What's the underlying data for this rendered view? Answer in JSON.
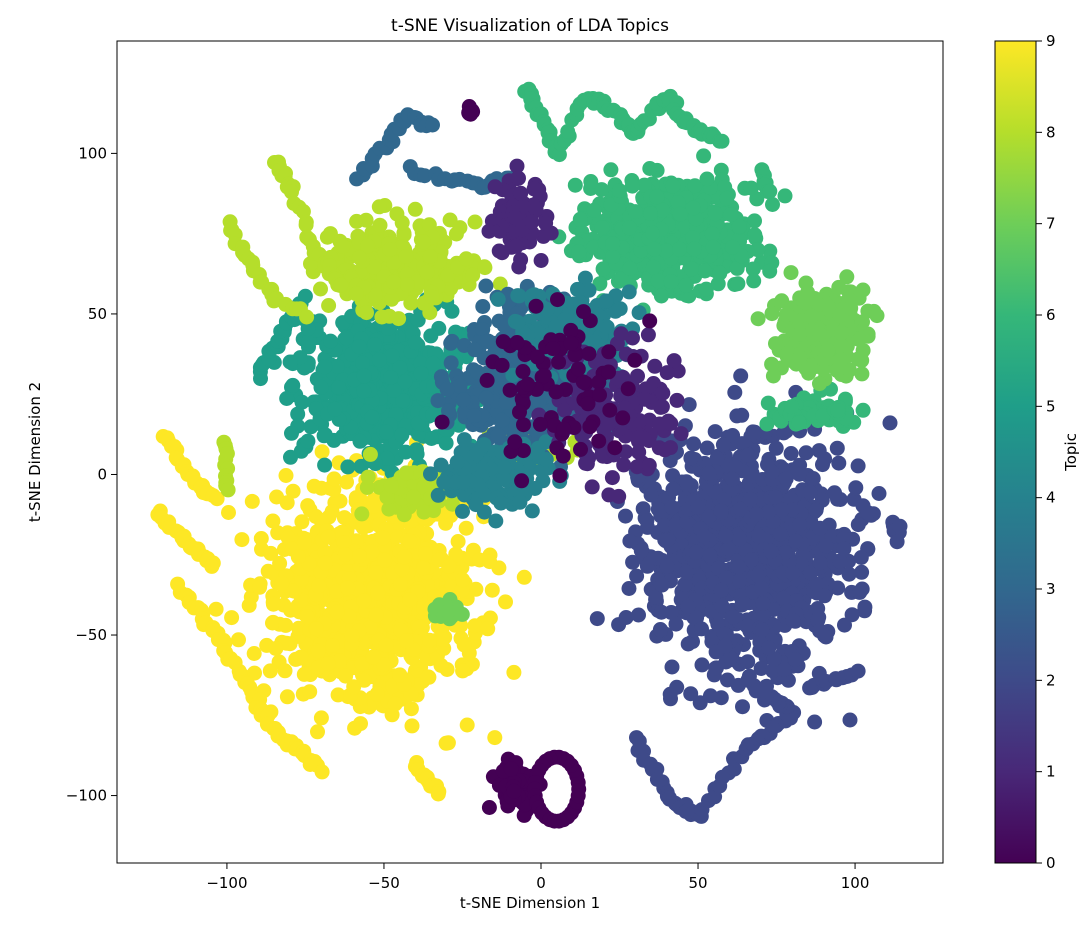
{
  "chart_data": {
    "type": "scatter",
    "title": "t-SNE Visualization of LDA Topics",
    "xlabel": "t-SNE Dimension 1",
    "ylabel": "t-SNE Dimension 2",
    "xlim": [
      -135,
      128
    ],
    "ylim": [
      -121,
      135
    ],
    "xticks": [
      -100,
      -50,
      0,
      50,
      100
    ],
    "yticks": [
      -100,
      -50,
      0,
      50,
      100
    ],
    "grid": false,
    "colormap": "viridis",
    "colorbar": {
      "label": "Topic",
      "range": [
        0,
        9
      ],
      "ticks": [
        0,
        1,
        2,
        3,
        4,
        5,
        6,
        7,
        8,
        9
      ]
    },
    "clusters": [
      {
        "topic": 9,
        "shape": "blob",
        "center": [
          -55,
          -38
        ],
        "spread": [
          30,
          30
        ],
        "count": 900
      },
      {
        "topic": 9,
        "shape": "arc",
        "points": [
          [
            -115,
            -35
          ],
          [
            -100,
            -55
          ],
          [
            -85,
            -80
          ],
          [
            -70,
            -92
          ]
        ],
        "count": 60
      },
      {
        "topic": 9,
        "shape": "arc",
        "points": [
          [
            -122,
            -12
          ],
          [
            -112,
            -22
          ],
          [
            -104,
            -28
          ]
        ],
        "count": 25
      },
      {
        "topic": 9,
        "shape": "arc",
        "points": [
          [
            -120,
            12
          ],
          [
            -112,
            0
          ],
          [
            -104,
            -8
          ]
        ],
        "count": 25
      },
      {
        "topic": 9,
        "shape": "arc",
        "points": [
          [
            -40,
            -90
          ],
          [
            -32,
            -100
          ]
        ],
        "count": 15
      },
      {
        "topic": 2,
        "shape": "blob",
        "center": [
          65,
          -25
        ],
        "spread": [
          30,
          33
        ],
        "count": 1000
      },
      {
        "topic": 2,
        "shape": "arc",
        "points": [
          [
            30,
            -82
          ],
          [
            40,
            -100
          ],
          [
            50,
            -107
          ],
          [
            65,
            -85
          ],
          [
            80,
            -75
          ],
          [
            72,
            -68
          ]
        ],
        "count": 60
      },
      {
        "topic": 2,
        "shape": "arc",
        "points": [
          [
            85,
            -66
          ],
          [
            100,
            -62
          ]
        ],
        "count": 12
      },
      {
        "topic": 2,
        "shape": "blob",
        "center": [
          113,
          -18
        ],
        "spread": [
          2,
          3
        ],
        "count": 10
      },
      {
        "topic": 5,
        "shape": "blob",
        "center": [
          -50,
          28
        ],
        "spread": [
          25,
          20
        ],
        "count": 600
      },
      {
        "topic": 5,
        "shape": "arc",
        "points": [
          [
            -90,
            30
          ],
          [
            -82,
            45
          ],
          [
            -75,
            55
          ]
        ],
        "count": 25
      },
      {
        "topic": 6,
        "shape": "blob",
        "center": [
          40,
          75
        ],
        "spread": [
          25,
          15
        ],
        "count": 550
      },
      {
        "topic": 6,
        "shape": "arc",
        "points": [
          [
            -5,
            120
          ],
          [
            0,
            112
          ],
          [
            5,
            100
          ],
          [
            15,
            118
          ],
          [
            25,
            112
          ],
          [
            30,
            106
          ],
          [
            40,
            118
          ],
          [
            48,
            108
          ],
          [
            58,
            104
          ]
        ],
        "count": 80
      },
      {
        "topic": 6,
        "shape": "arc",
        "points": [
          [
            70,
            95
          ],
          [
            72,
            88
          ]
        ],
        "count": 8
      },
      {
        "topic": 6,
        "shape": "blob",
        "center": [
          88,
          20
        ],
        "spread": [
          12,
          5
        ],
        "count": 60
      },
      {
        "topic": 7,
        "shape": "blob",
        "center": [
          90,
          45
        ],
        "spread": [
          12,
          12
        ],
        "count": 300
      },
      {
        "topic": 7,
        "shape": "blob",
        "center": [
          -30,
          -42
        ],
        "spread": [
          4,
          3
        ],
        "count": 25
      },
      {
        "topic": 8,
        "shape": "blob",
        "center": [
          -45,
          65
        ],
        "spread": [
          20,
          12
        ],
        "count": 300
      },
      {
        "topic": 8,
        "shape": "arc",
        "points": [
          [
            -85,
            98
          ],
          [
            -80,
            90
          ],
          [
            -72,
            70
          ],
          [
            -63,
            58
          ]
        ],
        "count": 30
      },
      {
        "topic": 8,
        "shape": "arc",
        "points": [
          [
            -100,
            78
          ],
          [
            -95,
            70
          ],
          [
            -90,
            62
          ],
          [
            -85,
            55
          ],
          [
            -75,
            50
          ]
        ],
        "count": 25
      },
      {
        "topic": 8,
        "shape": "arc",
        "points": [
          [
            -100,
            10
          ],
          [
            -100,
            -5
          ]
        ],
        "count": 12
      },
      {
        "topic": 8,
        "shape": "blob",
        "center": [
          -40,
          -5
        ],
        "spread": [
          12,
          8
        ],
        "count": 80
      },
      {
        "topic": 8,
        "shape": "blob",
        "center": [
          -3,
          8
        ],
        "spread": [
          10,
          6
        ],
        "count": 80
      },
      {
        "topic": 3,
        "shape": "blob",
        "center": [
          -5,
          30
        ],
        "spread": [
          20,
          20
        ],
        "count": 450
      },
      {
        "topic": 3,
        "shape": "arc",
        "points": [
          [
            -58,
            92
          ],
          [
            -50,
            102
          ],
          [
            -42,
            112
          ],
          [
            -35,
            108
          ]
        ],
        "count": 25
      },
      {
        "topic": 3,
        "shape": "arc",
        "points": [
          [
            -42,
            95
          ],
          [
            -30,
            92
          ],
          [
            -20,
            90
          ],
          [
            -10,
            92
          ]
        ],
        "count": 20
      },
      {
        "topic": 4,
        "shape": "blob",
        "center": [
          10,
          45
        ],
        "spread": [
          18,
          12
        ],
        "count": 200
      },
      {
        "topic": 4,
        "shape": "blob",
        "center": [
          -15,
          0
        ],
        "spread": [
          15,
          10
        ],
        "count": 150
      },
      {
        "topic": 1,
        "shape": "blob",
        "center": [
          -7,
          80
        ],
        "spread": [
          8,
          10
        ],
        "count": 90
      },
      {
        "topic": 1,
        "shape": "blob",
        "center": [
          25,
          20
        ],
        "spread": [
          18,
          18
        ],
        "count": 150
      },
      {
        "topic": 0,
        "shape": "blob",
        "center": [
          -8,
          -97
        ],
        "spread": [
          6,
          7
        ],
        "count": 60
      },
      {
        "topic": 0,
        "shape": "ring",
        "center": [
          5,
          -98
        ],
        "radius": [
          7,
          10
        ],
        "count": 30
      },
      {
        "topic": 0,
        "shape": "blob",
        "center": [
          -22,
          113
        ],
        "spread": [
          1.5,
          1.5
        ],
        "count": 6
      },
      {
        "topic": 0,
        "shape": "blob",
        "center": [
          5,
          30
        ],
        "spread": [
          25,
          25
        ],
        "count": 80
      }
    ]
  }
}
